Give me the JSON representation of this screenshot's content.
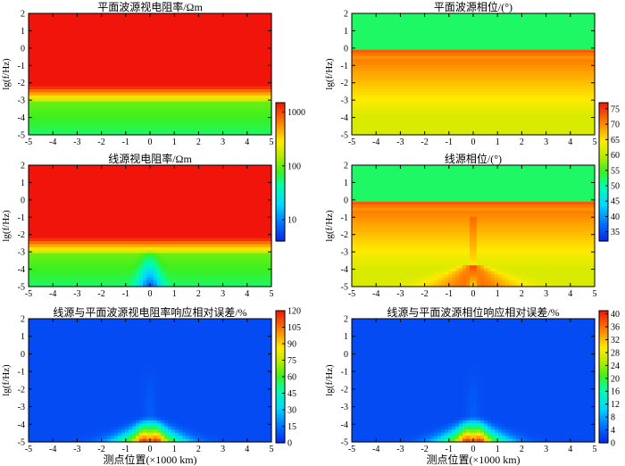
{
  "chart_data": [
    {
      "type": "heatmap",
      "id": "p1",
      "title": "平面波源视电阻率/Ωm",
      "ylabel": "lg(f/Hz)",
      "xlabel": "",
      "xlim": [
        -5,
        5
      ],
      "ylim": [
        -5,
        2
      ],
      "xticks": [
        "-5",
        "-4",
        "-3",
        "-2",
        "-1",
        "0",
        "1",
        "2",
        "3",
        "4",
        "5"
      ],
      "yticks": [
        "2",
        "1",
        "0",
        "-1",
        "-2",
        "-3",
        "-4",
        "-5"
      ],
      "field": "plane_rho",
      "colorbar": {
        "scale": "log",
        "range": [
          4,
          1500
        ],
        "ticks": [
          "10",
          "100",
          "1000"
        ],
        "tick_values": [
          10,
          100,
          1000
        ]
      }
    },
    {
      "type": "heatmap",
      "id": "p2",
      "title": "平面波源相位/(°)",
      "ylabel": "lg(f/Hz)",
      "xlabel": "",
      "xlim": [
        -5,
        5
      ],
      "ylim": [
        -5,
        2
      ],
      "xticks": [
        "-5",
        "-4",
        "-3",
        "-2",
        "-1",
        "0",
        "1",
        "2",
        "3",
        "4",
        "5"
      ],
      "yticks": [
        "2",
        "1",
        "0",
        "-1",
        "-2",
        "-3",
        "-4",
        "-5"
      ],
      "field": "plane_phase",
      "colorbar": {
        "scale": "linear",
        "range": [
          32,
          77
        ],
        "ticks": [
          "75",
          "70",
          "65",
          "60",
          "55",
          "50",
          "45",
          "40",
          "35"
        ],
        "tick_values": [
          75,
          70,
          65,
          60,
          55,
          50,
          45,
          40,
          35
        ]
      }
    },
    {
      "type": "heatmap",
      "id": "p3",
      "title": "线源视电阻率/Ωm",
      "ylabel": "lg(f/Hz)",
      "xlabel": "",
      "xlim": [
        -5,
        5
      ],
      "ylim": [
        -5,
        2
      ],
      "xticks": [
        "-5",
        "-4",
        "-3",
        "-2",
        "-1",
        "0",
        "1",
        "2",
        "3",
        "4",
        "5"
      ],
      "yticks": [
        "2",
        "1",
        "0",
        "-1",
        "-2",
        "-3",
        "-4",
        "-5"
      ],
      "field": "line_rho"
    },
    {
      "type": "heatmap",
      "id": "p4",
      "title": "线源相位/(°)",
      "ylabel": "lg(f/Hz)",
      "xlabel": "",
      "xlim": [
        -5,
        5
      ],
      "ylim": [
        -5,
        2
      ],
      "xticks": [
        "-5",
        "-4",
        "-3",
        "-2",
        "-1",
        "0",
        "1",
        "2",
        "3",
        "4",
        "5"
      ],
      "yticks": [
        "2",
        "1",
        "0",
        "-1",
        "-2",
        "-3",
        "-4",
        "-5"
      ],
      "field": "line_phase"
    },
    {
      "type": "heatmap",
      "id": "p5",
      "title": "线源与平面波源视电阻率响应相对误差/%",
      "ylabel": "lg(f/Hz)",
      "xlabel": "测点位置(×1000 km)",
      "xlim": [
        -5,
        5
      ],
      "ylim": [
        -5,
        2
      ],
      "xticks": [
        "-5",
        "-4",
        "-3",
        "-2",
        "-1",
        "0",
        "1",
        "2",
        "3",
        "4",
        "5"
      ],
      "yticks": [
        "2",
        "1",
        "0",
        "-1",
        "-2",
        "-3",
        "-4",
        "-5"
      ],
      "field": "rho_error",
      "colorbar": {
        "scale": "linear",
        "range": [
          0,
          120
        ],
        "ticks": [
          "120",
          "105",
          "90",
          "75",
          "60",
          "45",
          "30",
          "15",
          "0"
        ],
        "tick_values": [
          120,
          105,
          90,
          75,
          60,
          45,
          30,
          15,
          0
        ]
      }
    },
    {
      "type": "heatmap",
      "id": "p6",
      "title": "线源与平面波源相位响应相对误差/%",
      "ylabel": "lg(f/Hz)",
      "xlabel": "测点位置(×1000 km)",
      "xlim": [
        -5,
        5
      ],
      "ylim": [
        -5,
        2
      ],
      "xticks": [
        "-5",
        "-4",
        "-3",
        "-2",
        "-1",
        "0",
        "1",
        "2",
        "3",
        "4",
        "5"
      ],
      "yticks": [
        "2",
        "1",
        "0",
        "-1",
        "-2",
        "-3",
        "-4",
        "-5"
      ],
      "field": "phase_error",
      "colorbar": {
        "scale": "linear",
        "range": [
          0,
          41
        ],
        "ticks": [
          "40",
          "36",
          "32",
          "28",
          "24",
          "20",
          "16",
          "12",
          "8",
          "4",
          "0"
        ],
        "tick_values": [
          40,
          36,
          32,
          28,
          24,
          20,
          16,
          12,
          8,
          4,
          0
        ]
      }
    }
  ]
}
